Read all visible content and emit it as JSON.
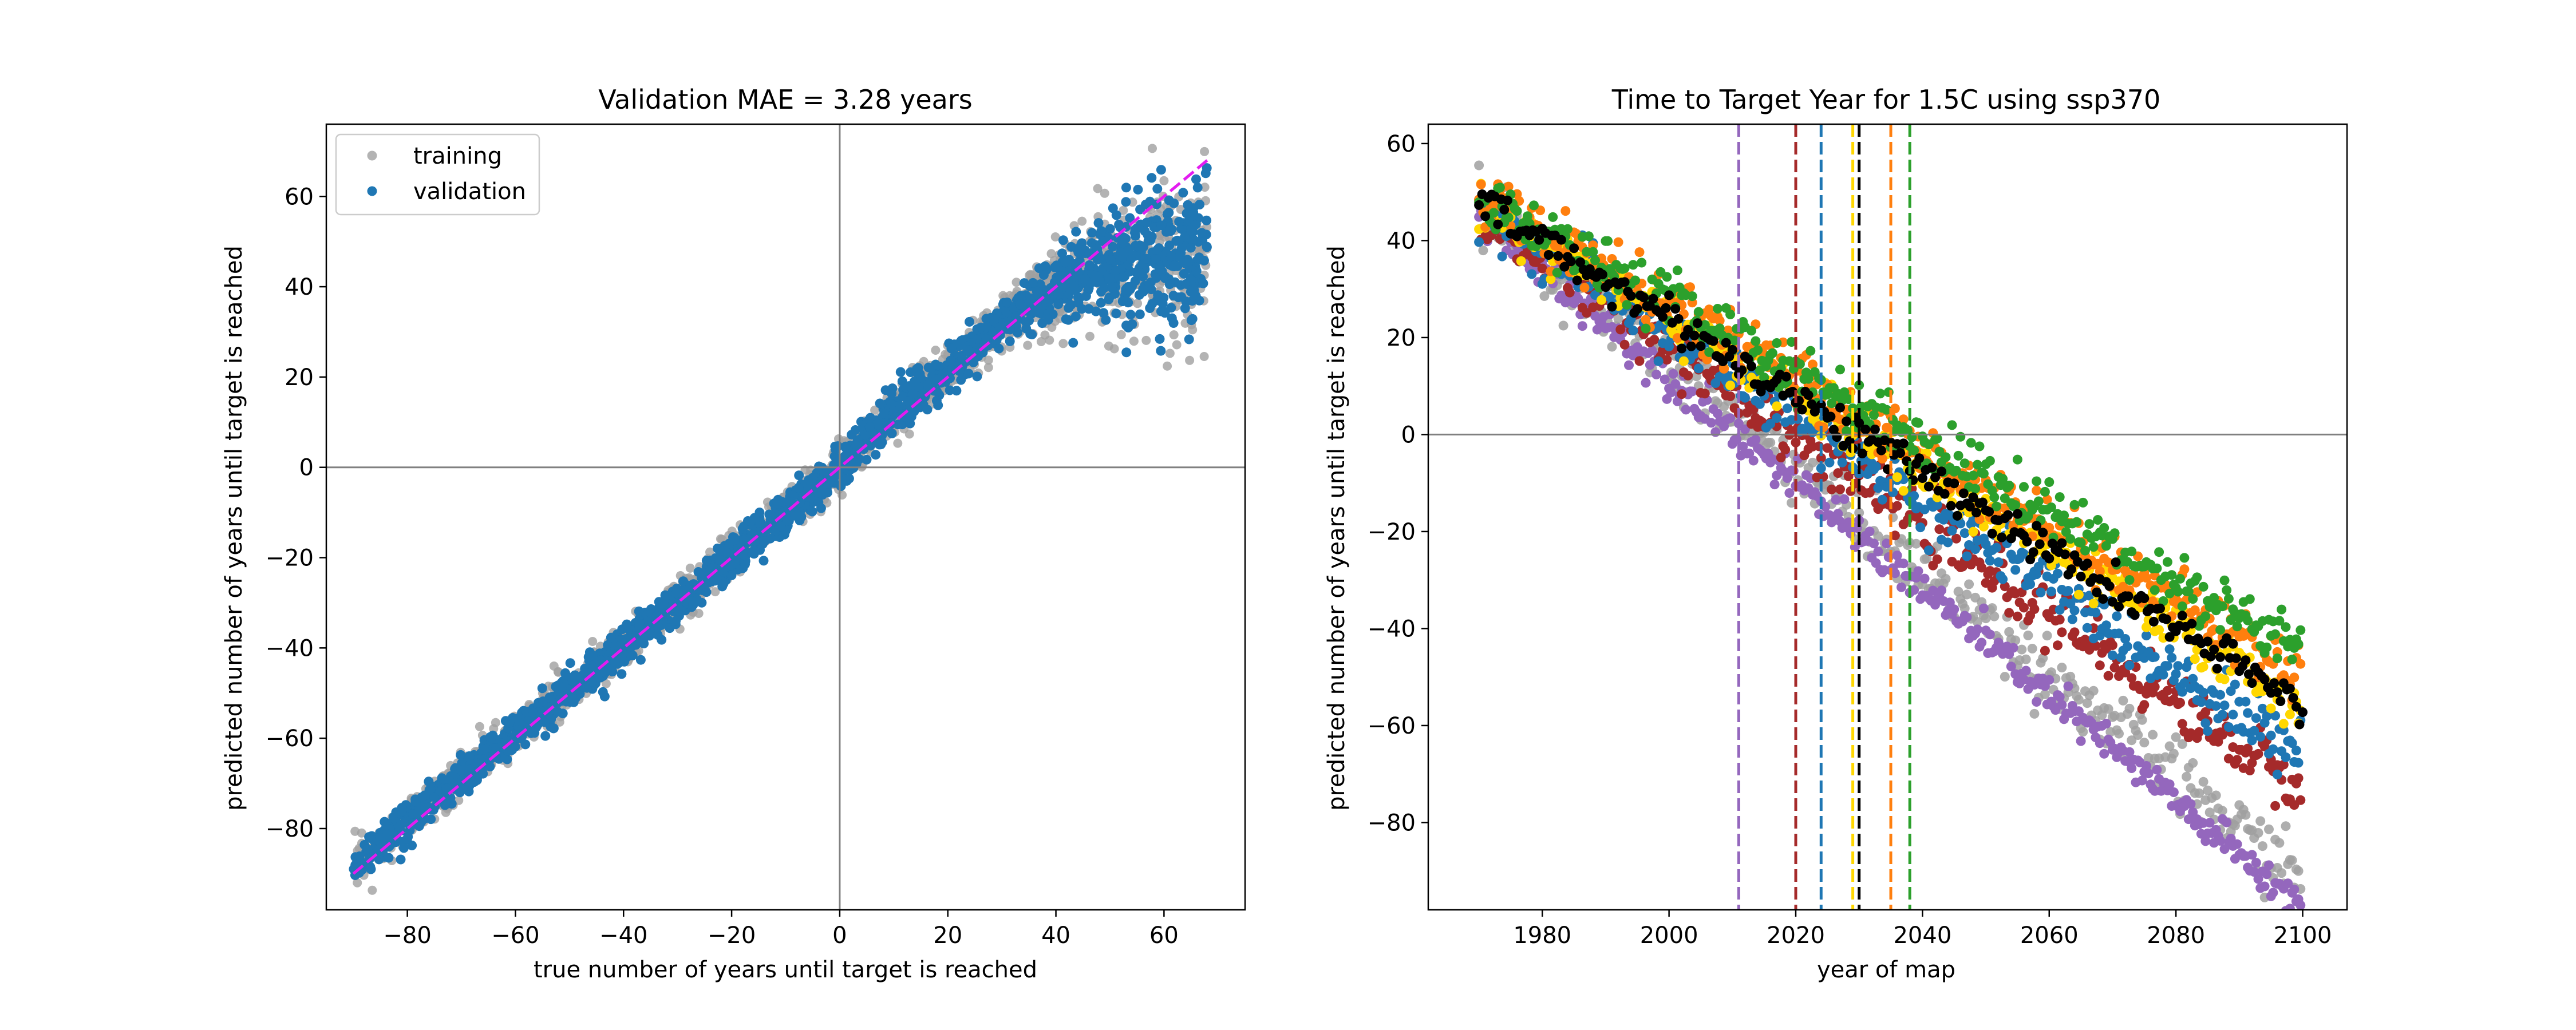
{
  "chart_data": [
    {
      "type": "scatter",
      "title": "Validation MAE = 3.28 years",
      "xlabel": "true number of years until target is reached",
      "ylabel": "predicted number of years until target is reached",
      "xlim": [
        -95,
        75
      ],
      "ylim": [
        -98,
        76
      ],
      "xticks": [
        -80,
        -60,
        -40,
        -20,
        0,
        20,
        40,
        60
      ],
      "yticks": [
        -80,
        -60,
        -40,
        -20,
        0,
        20,
        40,
        60
      ],
      "xtick_labels": [
        "−80",
        "−60",
        "−40",
        "−20",
        "0",
        "20",
        "40",
        "60"
      ],
      "ytick_labels": [
        "−80",
        "−60",
        "−40",
        "−20",
        "0",
        "20",
        "40",
        "60"
      ],
      "grid": false,
      "legend_position": "upper-left",
      "reference_lines": {
        "horizontal_y": 0,
        "vertical_x": 0
      },
      "one_to_one_line": {
        "x": [
          -90,
          68
        ],
        "y": [
          -90,
          68
        ],
        "color": "#e31cf0",
        "style": "dashed"
      },
      "trend_points": [
        [
          -90,
          -88
        ],
        [
          -60,
          -59
        ],
        [
          -40,
          -40
        ],
        [
          -20,
          -20
        ],
        [
          -5,
          -5
        ],
        [
          0,
          0
        ],
        [
          10,
          12
        ],
        [
          20,
          22
        ],
        [
          30,
          32
        ],
        [
          40,
          40
        ],
        [
          50,
          45
        ],
        [
          60,
          46
        ],
        [
          68,
          47
        ]
      ],
      "series": [
        {
          "name": "training",
          "color": "#a0a0a0",
          "n_points": 1400,
          "noise": 2.6
        },
        {
          "name": "validation",
          "color": "#1f77b4",
          "n_points": 2000,
          "noise": 2.2
        }
      ]
    },
    {
      "type": "scatter",
      "title": "Time to Target Year for 1.5C using ssp370",
      "xlabel": "year of map",
      "ylabel": "predicted number of years until target is reached",
      "xlim": [
        1962,
        2107
      ],
      "ylim": [
        -98,
        64
      ],
      "xticks": [
        1980,
        2000,
        2020,
        2040,
        2060,
        2080,
        2100
      ],
      "yticks": [
        -80,
        -60,
        -40,
        -20,
        0,
        20,
        40,
        60
      ],
      "xtick_labels": [
        "1980",
        "2000",
        "2020",
        "2040",
        "2060",
        "2080",
        "2100"
      ],
      "ytick_labels": [
        "−80",
        "−60",
        "−40",
        "−20",
        "0",
        "20",
        "40",
        "60"
      ],
      "grid": false,
      "reference_lines": {
        "horizontal_y": 0
      },
      "year_range": [
        1970,
        2100
      ],
      "series": [
        {
          "color": "#a0a0a0",
          "start": 47,
          "target_year": 2014,
          "noise": 3.5
        },
        {
          "color": "#9467bd",
          "start": 45,
          "target_year": 2011,
          "noise": 2.0
        },
        {
          "color": "#a52a2a",
          "start": 46,
          "target_year": 2020,
          "noise": 3.0
        },
        {
          "color": "#1f77b4",
          "start": 47,
          "target_year": 2024,
          "noise": 3.0
        },
        {
          "color": "#ffd700",
          "start": 48,
          "target_year": 2030,
          "noise": 2.5
        },
        {
          "color": "#ff7f0e",
          "start": 49,
          "target_year": 2035,
          "noise": 3.0
        },
        {
          "color": "#2ca02c",
          "start": 49,
          "target_year": 2038,
          "noise": 3.0
        },
        {
          "color": "#000000",
          "start": 48,
          "target_year": 2030,
          "noise": 2.0
        }
      ],
      "vlines": [
        {
          "x": 2011,
          "color": "#9467bd"
        },
        {
          "x": 2020,
          "color": "#a52a2a"
        },
        {
          "x": 2024,
          "color": "#1f77b4"
        },
        {
          "x": 2029,
          "color": "#ffd700"
        },
        {
          "x": 2030,
          "color": "#000000"
        },
        {
          "x": 2035,
          "color": "#ff7f0e"
        },
        {
          "x": 2038,
          "color": "#2ca02c"
        }
      ]
    }
  ]
}
